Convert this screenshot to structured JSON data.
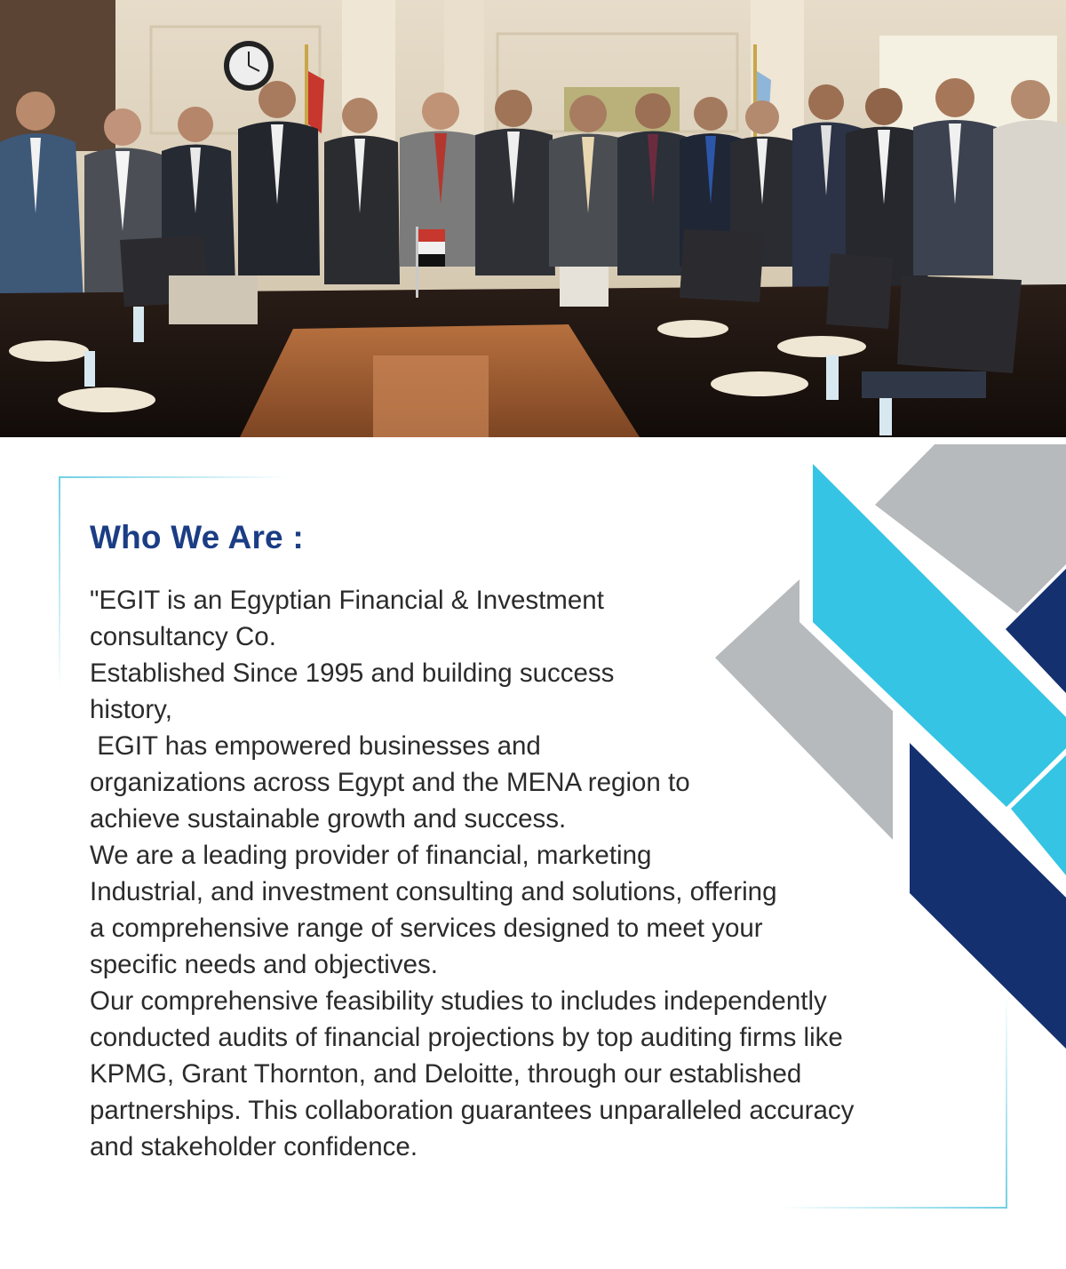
{
  "heading": "Who We Are :",
  "body_lines": [
    "\"EGIT is an Egyptian Financial & Investment",
    "consultancy Co.",
    "Established Since 1995 and building success",
    "history,",
    " EGIT has empowered businesses and",
    "organizations across Egypt and the MENA region to",
    "achieve sustainable growth and success.",
    "We are a leading provider of financial, marketing",
    "Industrial, and investment consulting and solutions, offering",
    "a comprehensive range of services designed to meet your",
    "specific needs and objectives.",
    "Our comprehensive feasibility studies to includes independently",
    "conducted audits of financial projections by top auditing firms like",
    "KPMG, Grant Thornton, and Deloitte, through our established",
    "partnerships. This collaboration guarantees unparalleled accuracy",
    "and stakeholder confidence."
  ],
  "colors": {
    "heading": "#1b3d84",
    "text": "#2b2b2b",
    "accent_cyan": "#35c4e3",
    "accent_navy": "#14306f",
    "accent_gray": "#b6babc",
    "frame_line": "#6fd0e4"
  },
  "photo": {
    "description_icon": "group-photo-icon"
  }
}
